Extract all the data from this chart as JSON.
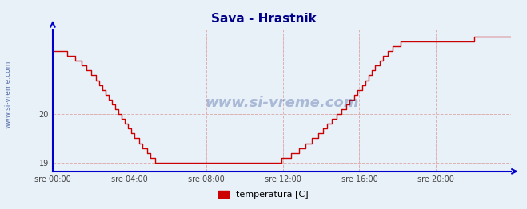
{
  "title": "Sava - Hrastnik",
  "bg_color": "#e8f0f8",
  "plot_bg_color": "#e8f0f8",
  "line_color": "#cc0000",
  "axis_color": "#0000cc",
  "grid_color": "#ddaaaa",
  "title_color": "#000088",
  "watermark_color": "#1a3a8a",
  "watermark_text": "www.si-vreme.com",
  "sidebar_text": "www.si-vreme.com",
  "ytick_labels": [
    "19",
    "20"
  ],
  "ytick_values": [
    19.0,
    20.0
  ],
  "ylim": [
    18.82,
    21.75
  ],
  "xlim": [
    0,
    287
  ],
  "xtick_positions": [
    0,
    48,
    96,
    144,
    192,
    240
  ],
  "xtick_labels": [
    "sre 00:00",
    "sre 04:00",
    "sre 08:00",
    "sre 12:00",
    "sre 16:00",
    "sre 20:00"
  ],
  "legend_label": "temperatura [C]",
  "legend_color": "#cc0000",
  "n_points": 288,
  "temp_data": [
    21.3,
    21.3,
    21.3,
    21.3,
    21.3,
    21.3,
    21.3,
    21.3,
    21.3,
    21.2,
    21.2,
    21.2,
    21.2,
    21.2,
    21.1,
    21.1,
    21.1,
    21.1,
    21.0,
    21.0,
    21.0,
    20.9,
    20.9,
    20.9,
    20.8,
    20.8,
    20.8,
    20.7,
    20.7,
    20.6,
    20.6,
    20.5,
    20.5,
    20.4,
    20.4,
    20.3,
    20.3,
    20.2,
    20.2,
    20.1,
    20.1,
    20.0,
    20.0,
    19.9,
    19.9,
    19.8,
    19.8,
    19.7,
    19.7,
    19.6,
    19.6,
    19.5,
    19.5,
    19.5,
    19.4,
    19.4,
    19.3,
    19.3,
    19.3,
    19.2,
    19.2,
    19.1,
    19.1,
    19.1,
    19.0,
    19.0,
    19.0,
    19.0,
    19.0,
    19.0,
    19.0,
    19.0,
    19.0,
    19.0,
    19.0,
    19.0,
    19.0,
    19.0,
    19.0,
    19.0,
    19.0,
    19.0,
    19.0,
    19.0,
    19.0,
    19.0,
    19.0,
    19.0,
    19.0,
    19.0,
    19.0,
    19.0,
    19.0,
    19.0,
    19.0,
    19.0,
    19.0,
    19.0,
    19.0,
    19.0,
    19.0,
    19.0,
    19.0,
    19.0,
    19.0,
    19.0,
    19.0,
    19.0,
    19.0,
    19.0,
    19.0,
    19.0,
    19.0,
    19.0,
    19.0,
    19.0,
    19.0,
    19.0,
    19.0,
    19.0,
    19.0,
    19.0,
    19.0,
    19.0,
    19.0,
    19.0,
    19.0,
    19.0,
    19.0,
    19.0,
    19.0,
    19.0,
    19.0,
    19.0,
    19.0,
    19.0,
    19.0,
    19.0,
    19.0,
    19.0,
    19.0,
    19.0,
    19.0,
    19.1,
    19.1,
    19.1,
    19.1,
    19.1,
    19.1,
    19.2,
    19.2,
    19.2,
    19.2,
    19.2,
    19.3,
    19.3,
    19.3,
    19.3,
    19.4,
    19.4,
    19.4,
    19.4,
    19.5,
    19.5,
    19.5,
    19.5,
    19.6,
    19.6,
    19.6,
    19.7,
    19.7,
    19.7,
    19.8,
    19.8,
    19.8,
    19.9,
    19.9,
    19.9,
    20.0,
    20.0,
    20.0,
    20.1,
    20.1,
    20.1,
    20.2,
    20.2,
    20.3,
    20.3,
    20.3,
    20.4,
    20.4,
    20.5,
    20.5,
    20.5,
    20.6,
    20.6,
    20.7,
    20.7,
    20.8,
    20.8,
    20.9,
    20.9,
    21.0,
    21.0,
    21.0,
    21.1,
    21.1,
    21.2,
    21.2,
    21.2,
    21.3,
    21.3,
    21.3,
    21.4,
    21.4,
    21.4,
    21.4,
    21.4,
    21.5,
    21.5,
    21.5,
    21.5,
    21.5,
    21.5,
    21.5,
    21.5,
    21.5,
    21.5,
    21.5,
    21.5,
    21.5,
    21.5,
    21.5,
    21.5,
    21.5,
    21.5,
    21.5,
    21.5,
    21.5,
    21.5,
    21.5,
    21.5,
    21.5,
    21.5,
    21.5,
    21.5,
    21.5,
    21.5,
    21.5,
    21.5,
    21.5,
    21.5,
    21.5,
    21.5,
    21.5,
    21.5,
    21.5,
    21.5,
    21.5,
    21.5,
    21.5,
    21.5,
    21.5,
    21.5,
    21.6,
    21.6,
    21.6,
    21.6,
    21.6,
    21.6,
    21.6,
    21.6,
    21.6,
    21.6,
    21.6,
    21.6,
    21.6,
    21.6,
    21.6,
    21.6,
    21.6,
    21.6,
    21.6,
    21.6,
    21.6,
    21.6,
    21.6,
    21.6
  ]
}
